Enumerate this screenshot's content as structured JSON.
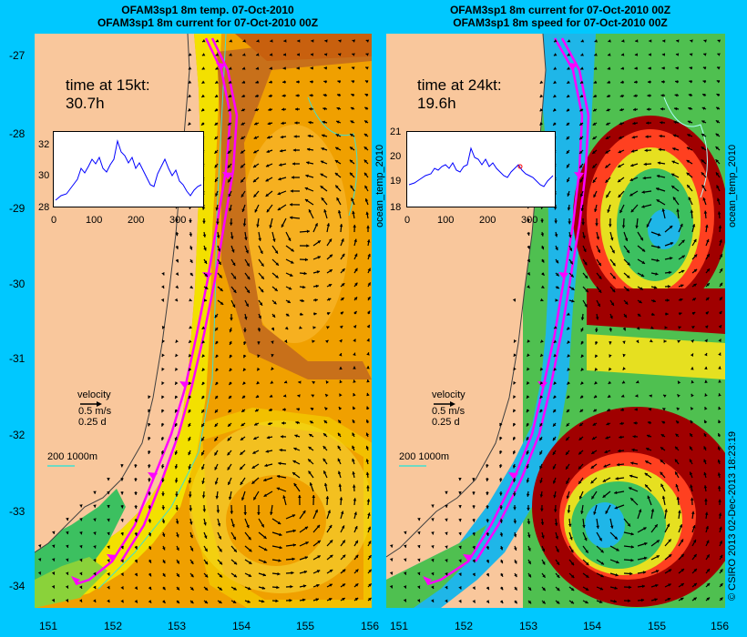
{
  "left_panel": {
    "title_line1": "OFAM3sp1 8m temp. 07-Oct-2010",
    "title_line2": "OFAM3sp1 8m current for 07-Oct-2010 00Z",
    "time_label": "time at 15kt:",
    "time_value": "30.7h",
    "inset": {
      "y_ticks": [
        "32",
        "30",
        "28"
      ],
      "x_ticks": [
        "0",
        "100",
        "200",
        "300"
      ]
    },
    "legend": {
      "title": "velocity",
      "speed": "0.5 m/s",
      "duration": "0.25 d",
      "isobaths": "200  1000m"
    }
  },
  "right_panel": {
    "title_line1": "OFAM3sp1 8m current for 07-Oct-2010 00Z",
    "title_line2": "OFAM3sp1 8m speed for 07-Oct-2010 00Z",
    "time_label": "time at 24kt:",
    "time_value": "19.6h",
    "inset": {
      "y_ticks": [
        "21",
        "20",
        "19",
        "18"
      ],
      "x_ticks": [
        "0",
        "100",
        "200",
        "300"
      ]
    },
    "legend": {
      "title": "velocity",
      "speed": "0.5 m/s",
      "duration": "0.25 d",
      "isobaths": "200  1000m"
    },
    "side_label_left": "ocean_temp_2010",
    "side_label_right": "ocean_temp_2010"
  },
  "latitude_ticks": [
    "-27",
    "-28",
    "-29",
    "-30",
    "-31",
    "-32",
    "-33",
    "-34"
  ],
  "longitude_ticks": [
    "151",
    "152",
    "153",
    "154",
    "155",
    "156"
  ],
  "credit": "© CSIRO 2013   02-Dec-2013 18:23:19",
  "colors": {
    "background": "#00c8ff",
    "land": "#f9c79c",
    "track": "#ff00ff",
    "vectors": "#000000"
  }
}
